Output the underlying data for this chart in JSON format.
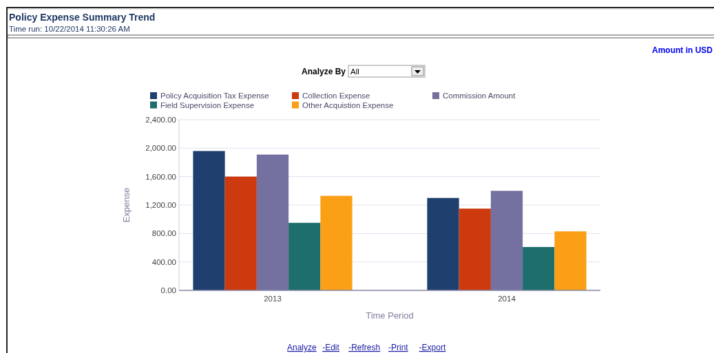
{
  "chart_data": {
    "type": "bar",
    "title": "Policy Expense Summary Trend",
    "subtitle": "Time run: 10/22/2014 11:30:26 AM",
    "xlabel": "Time Period",
    "ylabel": "Expense",
    "categories": [
      "2013",
      "2014"
    ],
    "series": [
      {
        "name": "Policy Acquisition Tax Expense",
        "color": "#1f3f6e",
        "values": [
          1960,
          1300
        ]
      },
      {
        "name": "Collection Expense",
        "color": "#cc3a0e",
        "values": [
          1600,
          1150
        ]
      },
      {
        "name": "Commission Amount",
        "color": "#74709f",
        "values": [
          1910,
          1400
        ]
      },
      {
        "name": "Field Supervision Expense",
        "color": "#1e6e6c",
        "values": [
          950,
          610
        ]
      },
      {
        "name": "Other Acquistion Expense",
        "color": "#fb9f16",
        "values": [
          1330,
          830
        ]
      }
    ],
    "ylim": [
      0,
      2400
    ],
    "yticks": [
      {
        "value": 0,
        "label": "0.00"
      },
      {
        "value": 400,
        "label": "400.00"
      },
      {
        "value": 800,
        "label": "800.00"
      },
      {
        "value": 1200,
        "label": "1,200.00"
      },
      {
        "value": 1600,
        "label": "1,600.00"
      },
      {
        "value": 2000,
        "label": "2,000.00"
      },
      {
        "value": 2400,
        "label": "2,400.00"
      }
    ],
    "grid": "y",
    "legend": "top",
    "annotations": [
      "Amount in USD",
      "Analyze By",
      "All",
      "Analyze",
      "-Edit",
      "-Refresh",
      "-Print",
      "-Export"
    ]
  }
}
